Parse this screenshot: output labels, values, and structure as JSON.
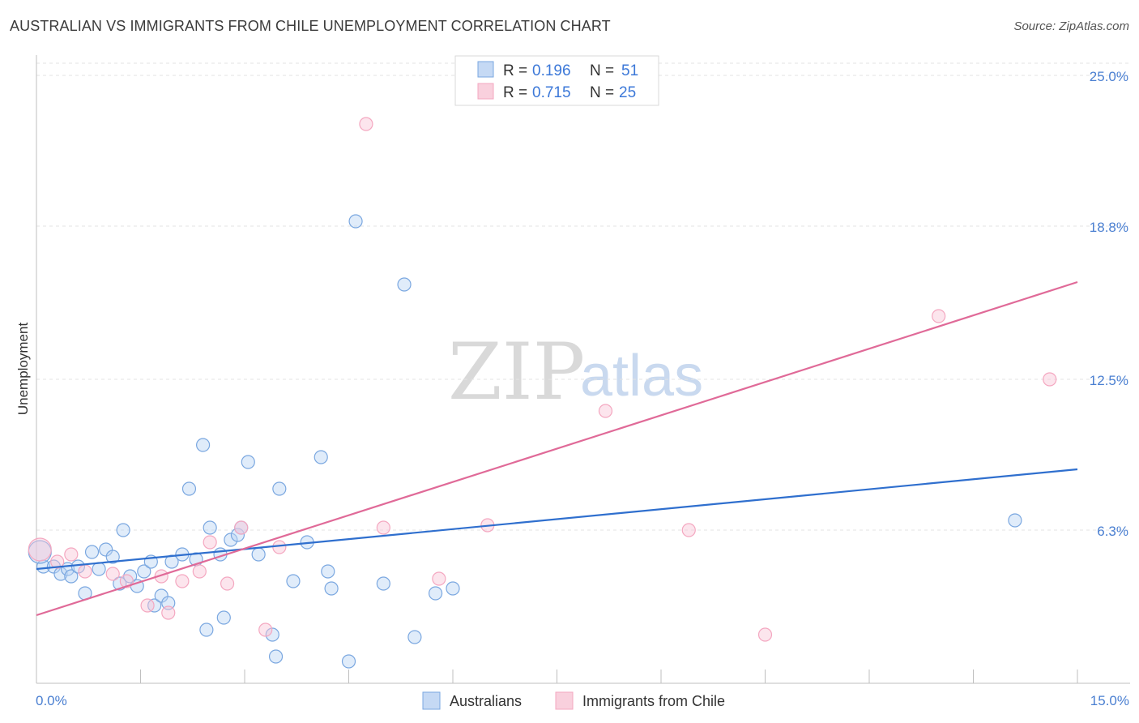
{
  "header": {
    "title": "AUSTRALIAN VS IMMIGRANTS FROM CHILE UNEMPLOYMENT CORRELATION CHART",
    "source": "Source: ZipAtlas.com"
  },
  "watermark": {
    "zip": "ZIP",
    "atlas": "atlas"
  },
  "chart_data": {
    "type": "scatter",
    "title": "AUSTRALIAN VS IMMIGRANTS FROM CHILE UNEMPLOYMENT CORRELATION CHART",
    "xlabel": "",
    "ylabel": "Unemployment",
    "xlim": [
      0,
      15
    ],
    "ylim": [
      0,
      25.7
    ],
    "x_tick_labels": {
      "min": "0.0%",
      "max": "15.0%"
    },
    "y_ticks": [
      {
        "value": 6.3,
        "label": "6.3%"
      },
      {
        "value": 12.5,
        "label": "12.5%"
      },
      {
        "value": 18.8,
        "label": "18.8%"
      },
      {
        "value": 25.0,
        "label": "25.0%"
      }
    ],
    "grid": true,
    "legend": {
      "position": "top-center",
      "entries": [
        {
          "r_label": "R = ",
          "r_value": "0.196",
          "n_label": "N = ",
          "n_value": "51"
        },
        {
          "r_label": "R = ",
          "r_value": "0.715",
          "n_label": "N = ",
          "n_value": "25"
        }
      ]
    },
    "series": [
      {
        "name": "Australians",
        "color": "#7aa7e0",
        "line_color": "#2f6fce",
        "trend": {
          "x": [
            0,
            15
          ],
          "y": [
            4.7,
            8.8
          ]
        },
        "points": [
          [
            0.1,
            4.8
          ],
          [
            0.25,
            4.8
          ],
          [
            0.35,
            4.5
          ],
          [
            0.45,
            4.7
          ],
          [
            0.5,
            4.4
          ],
          [
            0.6,
            4.8
          ],
          [
            0.7,
            3.7
          ],
          [
            0.8,
            5.4
          ],
          [
            0.9,
            4.7
          ],
          [
            1.0,
            5.5
          ],
          [
            1.1,
            5.2
          ],
          [
            1.2,
            4.1
          ],
          [
            1.25,
            6.3
          ],
          [
            1.35,
            4.4
          ],
          [
            1.45,
            4.0
          ],
          [
            1.55,
            4.6
          ],
          [
            1.65,
            5.0
          ],
          [
            1.7,
            3.2
          ],
          [
            1.8,
            3.6
          ],
          [
            1.9,
            3.3
          ],
          [
            1.95,
            5.0
          ],
          [
            2.1,
            5.3
          ],
          [
            2.2,
            8.0
          ],
          [
            2.3,
            5.1
          ],
          [
            2.4,
            9.8
          ],
          [
            2.45,
            2.2
          ],
          [
            2.5,
            6.4
          ],
          [
            2.65,
            5.3
          ],
          [
            2.7,
            2.7
          ],
          [
            2.8,
            5.9
          ],
          [
            2.9,
            6.1
          ],
          [
            2.95,
            6.4
          ],
          [
            3.05,
            9.1
          ],
          [
            3.2,
            5.3
          ],
          [
            3.4,
            2.0
          ],
          [
            3.45,
            1.1
          ],
          [
            3.5,
            8.0
          ],
          [
            3.7,
            4.2
          ],
          [
            3.9,
            5.8
          ],
          [
            4.1,
            9.3
          ],
          [
            4.2,
            4.6
          ],
          [
            4.25,
            3.9
          ],
          [
            4.5,
            0.9
          ],
          [
            4.6,
            19.0
          ],
          [
            5.0,
            4.1
          ],
          [
            5.3,
            16.4
          ],
          [
            5.45,
            1.9
          ],
          [
            5.75,
            3.7
          ],
          [
            6.0,
            3.9
          ],
          [
            14.1,
            6.7
          ],
          [
            0.05,
            5.4
          ]
        ]
      },
      {
        "name": "Immigrants from Chile",
        "color": "#f4a7c0",
        "line_color": "#e06a98",
        "trend": {
          "x": [
            0,
            15
          ],
          "y": [
            2.8,
            16.5
          ]
        },
        "points": [
          [
            0.05,
            5.5
          ],
          [
            0.3,
            5.0
          ],
          [
            0.5,
            5.3
          ],
          [
            0.7,
            4.6
          ],
          [
            1.1,
            4.5
          ],
          [
            1.3,
            4.2
          ],
          [
            1.6,
            3.2
          ],
          [
            1.8,
            4.4
          ],
          [
            1.9,
            2.9
          ],
          [
            2.1,
            4.2
          ],
          [
            2.35,
            4.6
          ],
          [
            2.5,
            5.8
          ],
          [
            2.75,
            4.1
          ],
          [
            2.95,
            6.4
          ],
          [
            3.3,
            2.2
          ],
          [
            3.5,
            5.6
          ],
          [
            4.75,
            23.0
          ],
          [
            5.0,
            6.4
          ],
          [
            5.8,
            4.3
          ],
          [
            6.5,
            6.5
          ],
          [
            8.2,
            11.2
          ],
          [
            9.4,
            6.3
          ],
          [
            10.5,
            2.0
          ],
          [
            13.0,
            15.1
          ],
          [
            14.6,
            12.5
          ]
        ]
      }
    ]
  }
}
